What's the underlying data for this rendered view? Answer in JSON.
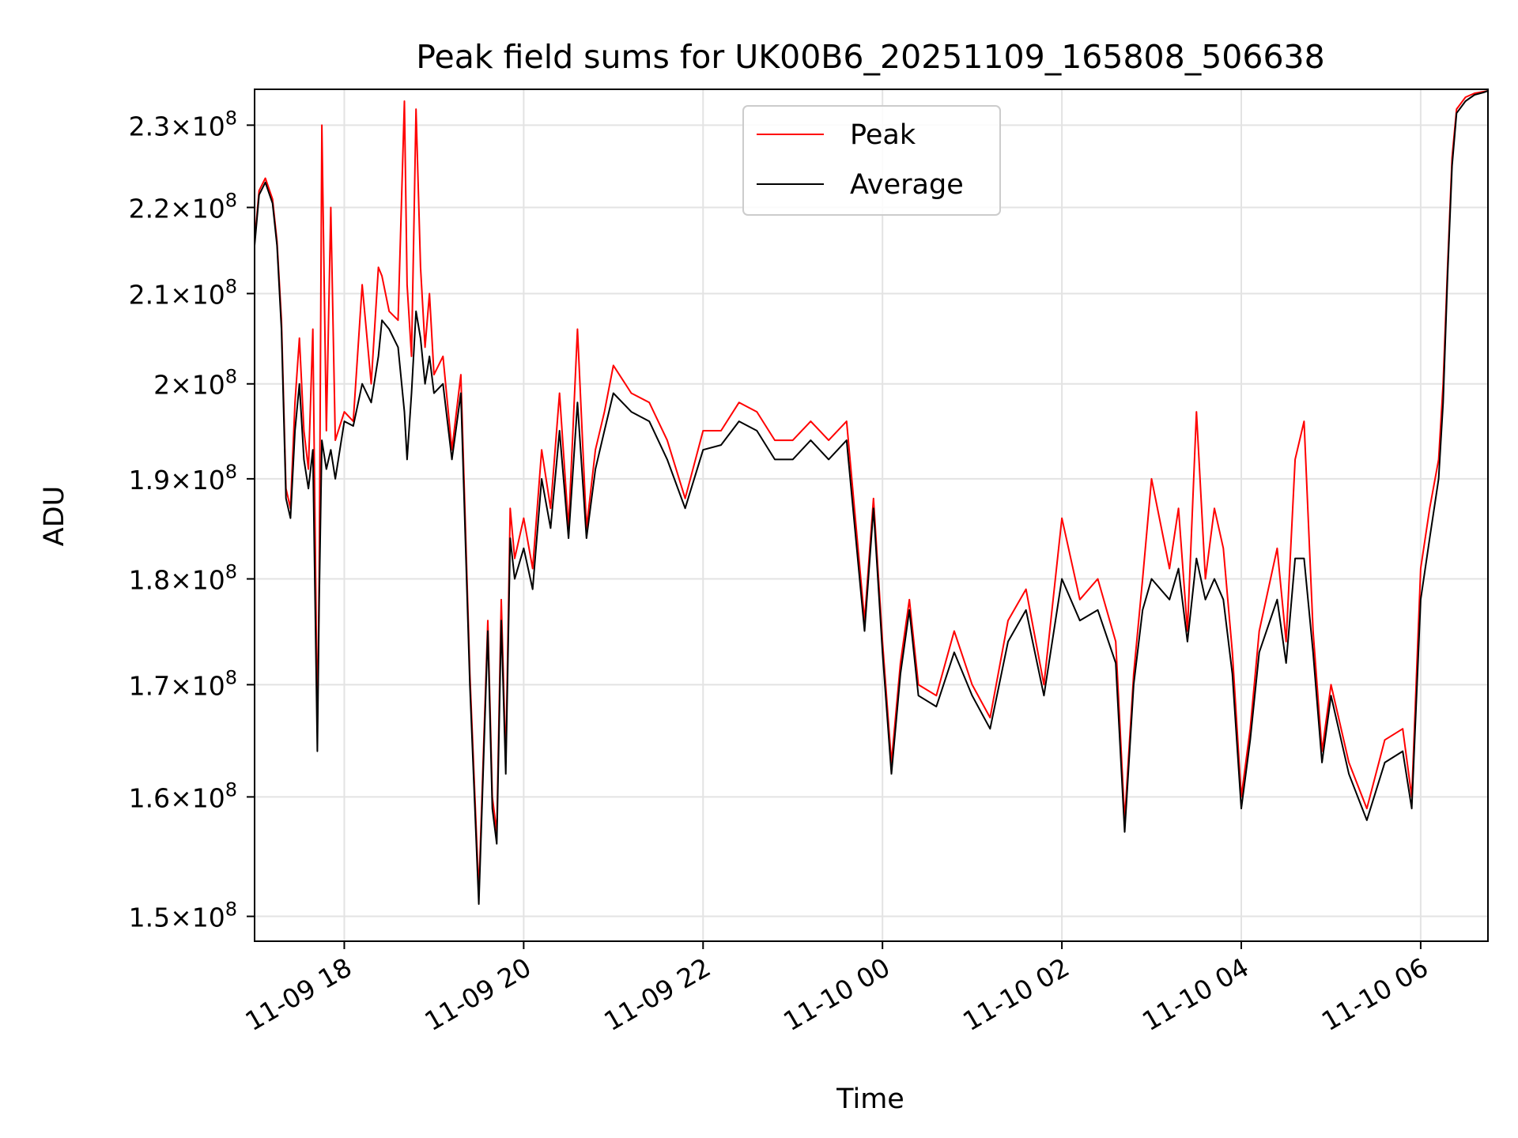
{
  "chart_data": {
    "type": "line",
    "title": "Peak field sums for UK00B6_20251109_165808_506638",
    "xlabel": "Time",
    "ylabel": "ADU",
    "yscale": "log",
    "grid": true,
    "legend_position": "top-center",
    "xlim": [
      17.0,
      30.75
    ],
    "ylim": [
      148000000,
      234500000
    ],
    "x_unit": "hours since 2025-11-09 00:00",
    "xticks": [
      {
        "value": 18,
        "label": "11-09 18"
      },
      {
        "value": 20,
        "label": "11-09 20"
      },
      {
        "value": 22,
        "label": "11-09 22"
      },
      {
        "value": 24,
        "label": "11-10 00"
      },
      {
        "value": 26,
        "label": "11-10 02"
      },
      {
        "value": 28,
        "label": "11-10 04"
      },
      {
        "value": 30,
        "label": "11-10 06"
      }
    ],
    "yticks": [
      {
        "value": 150000000,
        "base": "1.5",
        "exp": "8"
      },
      {
        "value": 160000000,
        "base": "1.6",
        "exp": "8"
      },
      {
        "value": 170000000,
        "base": "1.7",
        "exp": "8"
      },
      {
        "value": 180000000,
        "base": "1.8",
        "exp": "8"
      },
      {
        "value": 190000000,
        "base": "1.9",
        "exp": "8"
      },
      {
        "value": 200000000,
        "base": "2",
        "exp": "8"
      },
      {
        "value": 210000000,
        "base": "2.1",
        "exp": "8"
      },
      {
        "value": 220000000,
        "base": "2.2",
        "exp": "8"
      },
      {
        "value": 230000000,
        "base": "2.3",
        "exp": "8"
      }
    ],
    "series": [
      {
        "name": "Peak",
        "color": "#ff0000",
        "x": [
          17.0,
          17.05,
          17.12,
          17.2,
          17.25,
          17.3,
          17.35,
          17.4,
          17.45,
          17.5,
          17.55,
          17.6,
          17.65,
          17.7,
          17.72,
          17.75,
          17.8,
          17.85,
          17.9,
          18.0,
          18.1,
          18.2,
          18.3,
          18.38,
          18.42,
          18.5,
          18.6,
          18.67,
          18.7,
          18.75,
          18.8,
          18.85,
          18.9,
          18.95,
          19.0,
          19.1,
          19.2,
          19.3,
          19.4,
          19.5,
          19.6,
          19.65,
          19.7,
          19.75,
          19.8,
          19.85,
          19.9,
          20.0,
          20.1,
          20.2,
          20.3,
          20.4,
          20.5,
          20.6,
          20.7,
          20.8,
          20.9,
          21.0,
          21.2,
          21.4,
          21.6,
          21.8,
          22.0,
          22.2,
          22.4,
          22.6,
          22.8,
          23.0,
          23.2,
          23.4,
          23.6,
          23.8,
          23.9,
          24.0,
          24.1,
          24.2,
          24.3,
          24.4,
          24.6,
          24.8,
          25.0,
          25.2,
          25.4,
          25.6,
          25.8,
          26.0,
          26.2,
          26.4,
          26.6,
          26.7,
          26.8,
          26.9,
          27.0,
          27.2,
          27.3,
          27.4,
          27.5,
          27.6,
          27.7,
          27.8,
          27.9,
          28.0,
          28.1,
          28.2,
          28.4,
          28.5,
          28.6,
          28.7,
          28.8,
          28.9,
          29.0,
          29.2,
          29.4,
          29.6,
          29.8,
          29.9,
          30.0,
          30.1,
          30.2,
          30.25,
          30.3,
          30.35,
          30.4,
          30.5,
          30.6,
          30.7,
          30.75
        ],
        "y": [
          216000000,
          222000000,
          223500000,
          221000000,
          216000000,
          207000000,
          189000000,
          187000000,
          198000000,
          205000000,
          195000000,
          191000000,
          206000000,
          166000000,
          180000000,
          230000000,
          195000000,
          220000000,
          194000000,
          197000000,
          196000000,
          211000000,
          200000000,
          213000000,
          212000000,
          208000000,
          207000000,
          233000000,
          211000000,
          203000000,
          232000000,
          213000000,
          204000000,
          210000000,
          201000000,
          203000000,
          193000000,
          201000000,
          171000000,
          152000000,
          176000000,
          160000000,
          157000000,
          178000000,
          163000000,
          187000000,
          182000000,
          186000000,
          181000000,
          193000000,
          187000000,
          199000000,
          185000000,
          206000000,
          185000000,
          193000000,
          197000000,
          202000000,
          199000000,
          198000000,
          194000000,
          188000000,
          195000000,
          195000000,
          198000000,
          197000000,
          194000000,
          194000000,
          196000000,
          194000000,
          196000000,
          176000000,
          188000000,
          174000000,
          163000000,
          172000000,
          178000000,
          170000000,
          169000000,
          175000000,
          170000000,
          167000000,
          176000000,
          179000000,
          170000000,
          186000000,
          178000000,
          180000000,
          174000000,
          158000000,
          171000000,
          180000000,
          190000000,
          181000000,
          187000000,
          175000000,
          197000000,
          180000000,
          187000000,
          183000000,
          173000000,
          160000000,
          166000000,
          175000000,
          183000000,
          174000000,
          192000000,
          196000000,
          175000000,
          164000000,
          170000000,
          163000000,
          159000000,
          165000000,
          166000000,
          160000000,
          181000000,
          187000000,
          192000000,
          200000000,
          213000000,
          226000000,
          232000000,
          233500000,
          234000000,
          234200000,
          234300000
        ]
      },
      {
        "name": "Average",
        "color": "#000000",
        "x": [
          17.0,
          17.05,
          17.12,
          17.2,
          17.25,
          17.3,
          17.35,
          17.4,
          17.45,
          17.5,
          17.55,
          17.6,
          17.65,
          17.7,
          17.72,
          17.75,
          17.8,
          17.85,
          17.9,
          18.0,
          18.1,
          18.2,
          18.3,
          18.38,
          18.42,
          18.5,
          18.6,
          18.67,
          18.7,
          18.75,
          18.8,
          18.85,
          18.9,
          18.95,
          19.0,
          19.1,
          19.2,
          19.3,
          19.4,
          19.5,
          19.6,
          19.65,
          19.7,
          19.75,
          19.8,
          19.85,
          19.9,
          20.0,
          20.1,
          20.2,
          20.3,
          20.4,
          20.5,
          20.6,
          20.7,
          20.8,
          20.9,
          21.0,
          21.2,
          21.4,
          21.6,
          21.8,
          22.0,
          22.2,
          22.4,
          22.6,
          22.8,
          23.0,
          23.2,
          23.4,
          23.6,
          23.8,
          23.9,
          24.0,
          24.1,
          24.2,
          24.3,
          24.4,
          24.6,
          24.8,
          25.0,
          25.2,
          25.4,
          25.6,
          25.8,
          26.0,
          26.2,
          26.4,
          26.6,
          26.7,
          26.8,
          26.9,
          27.0,
          27.2,
          27.3,
          27.4,
          27.5,
          27.6,
          27.7,
          27.8,
          27.9,
          28.0,
          28.1,
          28.2,
          28.4,
          28.5,
          28.6,
          28.7,
          28.8,
          28.9,
          29.0,
          29.2,
          29.4,
          29.6,
          29.8,
          29.9,
          30.0,
          30.1,
          30.2,
          30.25,
          30.3,
          30.35,
          30.4,
          30.5,
          30.6,
          30.7,
          30.75
        ],
        "y": [
          215500000,
          221500000,
          223000000,
          220500000,
          215500000,
          206000000,
          188000000,
          186000000,
          195000000,
          200000000,
          192000000,
          189000000,
          193000000,
          164000000,
          178000000,
          194000000,
          191000000,
          193000000,
          190000000,
          196000000,
          195500000,
          200000000,
          198000000,
          203000000,
          207000000,
          206000000,
          204000000,
          197000000,
          192000000,
          199000000,
          208000000,
          205000000,
          200000000,
          203000000,
          199000000,
          200000000,
          192000000,
          199000000,
          170000000,
          151000000,
          175000000,
          159000000,
          156000000,
          176000000,
          162000000,
          184000000,
          180000000,
          183000000,
          179000000,
          190000000,
          185000000,
          195000000,
          184000000,
          198000000,
          184000000,
          191000000,
          195000000,
          199000000,
          197000000,
          196000000,
          192000000,
          187000000,
          193000000,
          193500000,
          196000000,
          195000000,
          192000000,
          192000000,
          194000000,
          192000000,
          194000000,
          175000000,
          187000000,
          173000000,
          162000000,
          171000000,
          177000000,
          169000000,
          168000000,
          173000000,
          169000000,
          166000000,
          174000000,
          177000000,
          169000000,
          180000000,
          176000000,
          177000000,
          172000000,
          157000000,
          170000000,
          177000000,
          180000000,
          178000000,
          181000000,
          174000000,
          182000000,
          178000000,
          180000000,
          178000000,
          171000000,
          159000000,
          165000000,
          173000000,
          178000000,
          172000000,
          182000000,
          182000000,
          173000000,
          163000000,
          169000000,
          162000000,
          158000000,
          163000000,
          164000000,
          159000000,
          178000000,
          184000000,
          190000000,
          198000000,
          212000000,
          225000000,
          231500000,
          233000000,
          233800000,
          234100000,
          234300000
        ]
      }
    ]
  }
}
